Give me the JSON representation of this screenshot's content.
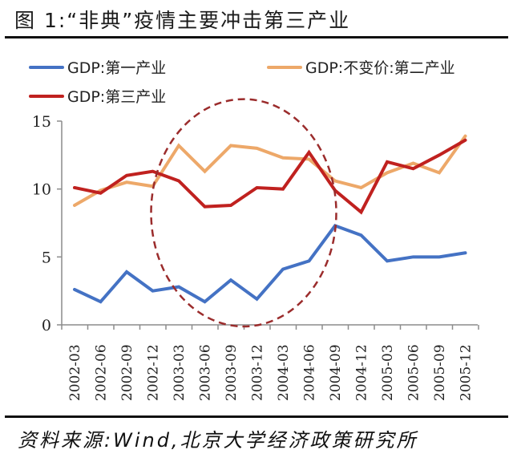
{
  "figure": {
    "title": "图 1:“非典”疫情主要冲击第三产业",
    "source": "资料来源:Wind,北京大学经济政策研究所"
  },
  "chart_data": {
    "type": "line",
    "title": "图 1:“非典”疫情主要冲击第三产业",
    "xlabel": "",
    "ylabel": "",
    "ylim": [
      0,
      15
    ],
    "yticks": [
      0,
      5,
      10,
      15
    ],
    "grid": false,
    "legend_position": "top",
    "x": [
      "2002-03",
      "2002-06",
      "2002-09",
      "2002-12",
      "2003-03",
      "2003-06",
      "2003-09",
      "2003-12",
      "2004-03",
      "2004-06",
      "2004-09",
      "2004-12",
      "2005-03",
      "2005-06",
      "2005-09",
      "2005-12"
    ],
    "series": [
      {
        "name": "GDP:第一产业",
        "color": "#4472C4",
        "values": [
          2.6,
          1.7,
          3.9,
          2.5,
          2.8,
          1.7,
          3.3,
          1.9,
          4.1,
          4.7,
          7.3,
          6.6,
          4.7,
          5.0,
          5.0,
          5.3
        ]
      },
      {
        "name": "GDP:不变价:第二产业",
        "color": "#EDA869",
        "values": [
          8.8,
          9.9,
          10.5,
          10.2,
          13.2,
          11.3,
          13.2,
          13.0,
          12.3,
          12.2,
          10.6,
          10.1,
          11.2,
          11.9,
          11.2,
          13.9
        ]
      },
      {
        "name": "GDP:第三产业",
        "color": "#C0211F",
        "values": [
          10.1,
          9.7,
          11.0,
          11.3,
          10.6,
          8.7,
          8.8,
          10.1,
          10.0,
          12.7,
          9.9,
          8.3,
          12.0,
          11.5,
          12.5,
          13.6
        ]
      }
    ],
    "annotations": [
      {
        "type": "dashed-ellipse",
        "color": "#9B2C2C",
        "x_range": [
          "2002-12",
          "2004-06"
        ],
        "y_range": [
          0,
          16.5
        ],
        "meaning": "SARS period highlight"
      }
    ]
  }
}
